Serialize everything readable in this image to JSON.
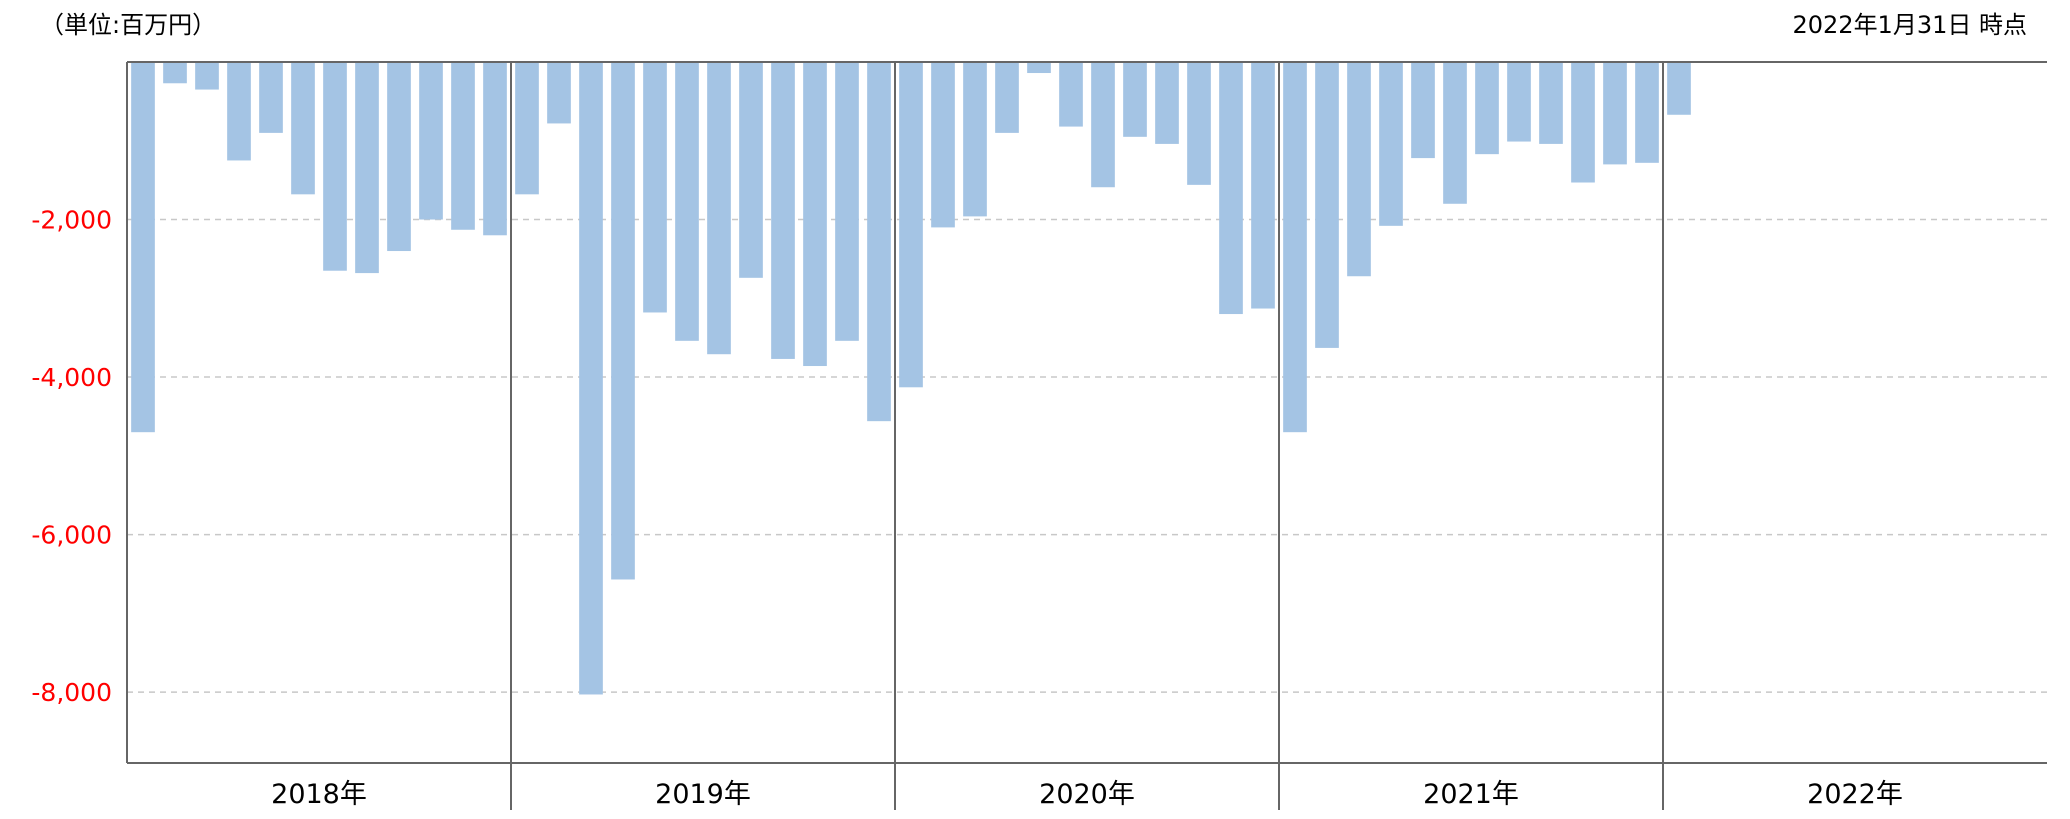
{
  "header": {
    "unit": "（単位:百万円）",
    "as_of": "2022年1月31日 時点"
  },
  "chart_data": {
    "type": "bar",
    "ylim": [
      -8900,
      0
    ],
    "yticks": [
      -2000,
      -4000,
      -6000,
      -8000
    ],
    "ytick_labels": [
      "-2,000",
      "-4,000",
      "-6,000",
      "-8,000"
    ],
    "grid": true,
    "years": [
      "2018年",
      "2019年",
      "2020年",
      "2021年",
      "2022年"
    ],
    "values": [
      [
        -4700,
        -270,
        -350,
        -1250,
        -900,
        -1680,
        -2650,
        -2680,
        -2400,
        -2000,
        -2130,
        -2200
      ],
      [
        -1680,
        -780,
        -8030,
        -6570,
        -3180,
        -3540,
        -3710,
        -2740,
        -3770,
        -3860,
        -3540,
        -4560
      ],
      [
        -4130,
        -2100,
        -1960,
        -900,
        -140,
        -820,
        -1590,
        -950,
        -1040,
        -1560,
        -3200,
        -3130
      ],
      [
        -4700,
        -3630,
        -2720,
        -2080,
        -1220,
        -1800,
        -1170,
        -1010,
        -1040,
        -1530,
        -1300,
        -1280
      ],
      [
        -670
      ]
    ],
    "bar_color": "#a4c4e4"
  }
}
